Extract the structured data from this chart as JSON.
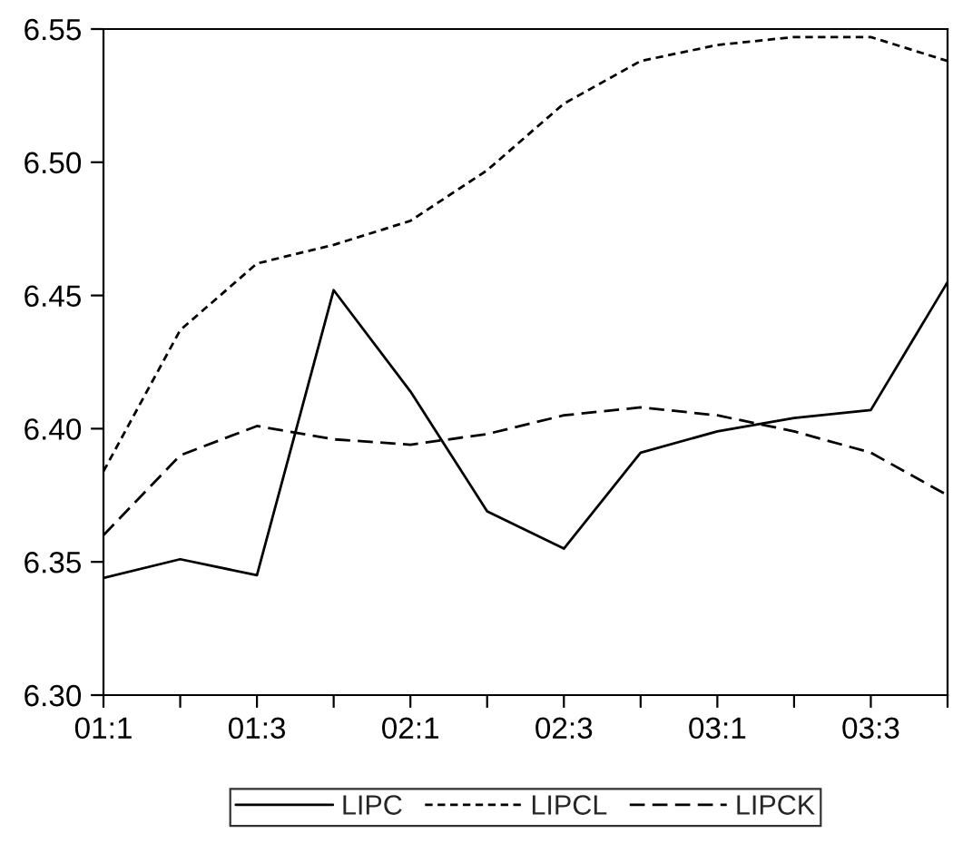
{
  "chart_data": {
    "type": "line",
    "categories": [
      "01:1",
      null,
      "01:3",
      null,
      "02:1",
      null,
      "02:3",
      null,
      "03:1",
      null,
      "03:3",
      null
    ],
    "series": [
      {
        "name": "LIPC",
        "color": "#000000",
        "line_style": "solid",
        "values": [
          6.344,
          6.351,
          6.345,
          6.452,
          6.414,
          6.369,
          6.355,
          6.391,
          6.399,
          6.404,
          6.407,
          6.455
        ]
      },
      {
        "name": "LIPCL",
        "color": "#000000",
        "line_style": "dotted",
        "values": [
          6.384,
          6.437,
          6.462,
          6.469,
          6.478,
          6.497,
          6.522,
          6.538,
          6.544,
          6.547,
          6.547,
          6.538
        ]
      },
      {
        "name": "LIPCK",
        "color": "#000000",
        "line_style": "dashed",
        "values": [
          6.36,
          6.39,
          6.401,
          6.396,
          6.394,
          6.398,
          6.405,
          6.408,
          6.405,
          6.399,
          6.391,
          6.375
        ]
      }
    ],
    "ylim": [
      6.3,
      6.55
    ],
    "yticks": [
      {
        "value": 6.3,
        "label": "6.30"
      },
      {
        "value": 6.35,
        "label": "6.35"
      },
      {
        "value": 6.4,
        "label": "6.40"
      },
      {
        "value": 6.45,
        "label": "6.45"
      },
      {
        "value": 6.5,
        "label": "6.50"
      },
      {
        "value": 6.55,
        "label": "6.55"
      }
    ],
    "grid": false,
    "legend": "bottom",
    "marker": "none"
  }
}
